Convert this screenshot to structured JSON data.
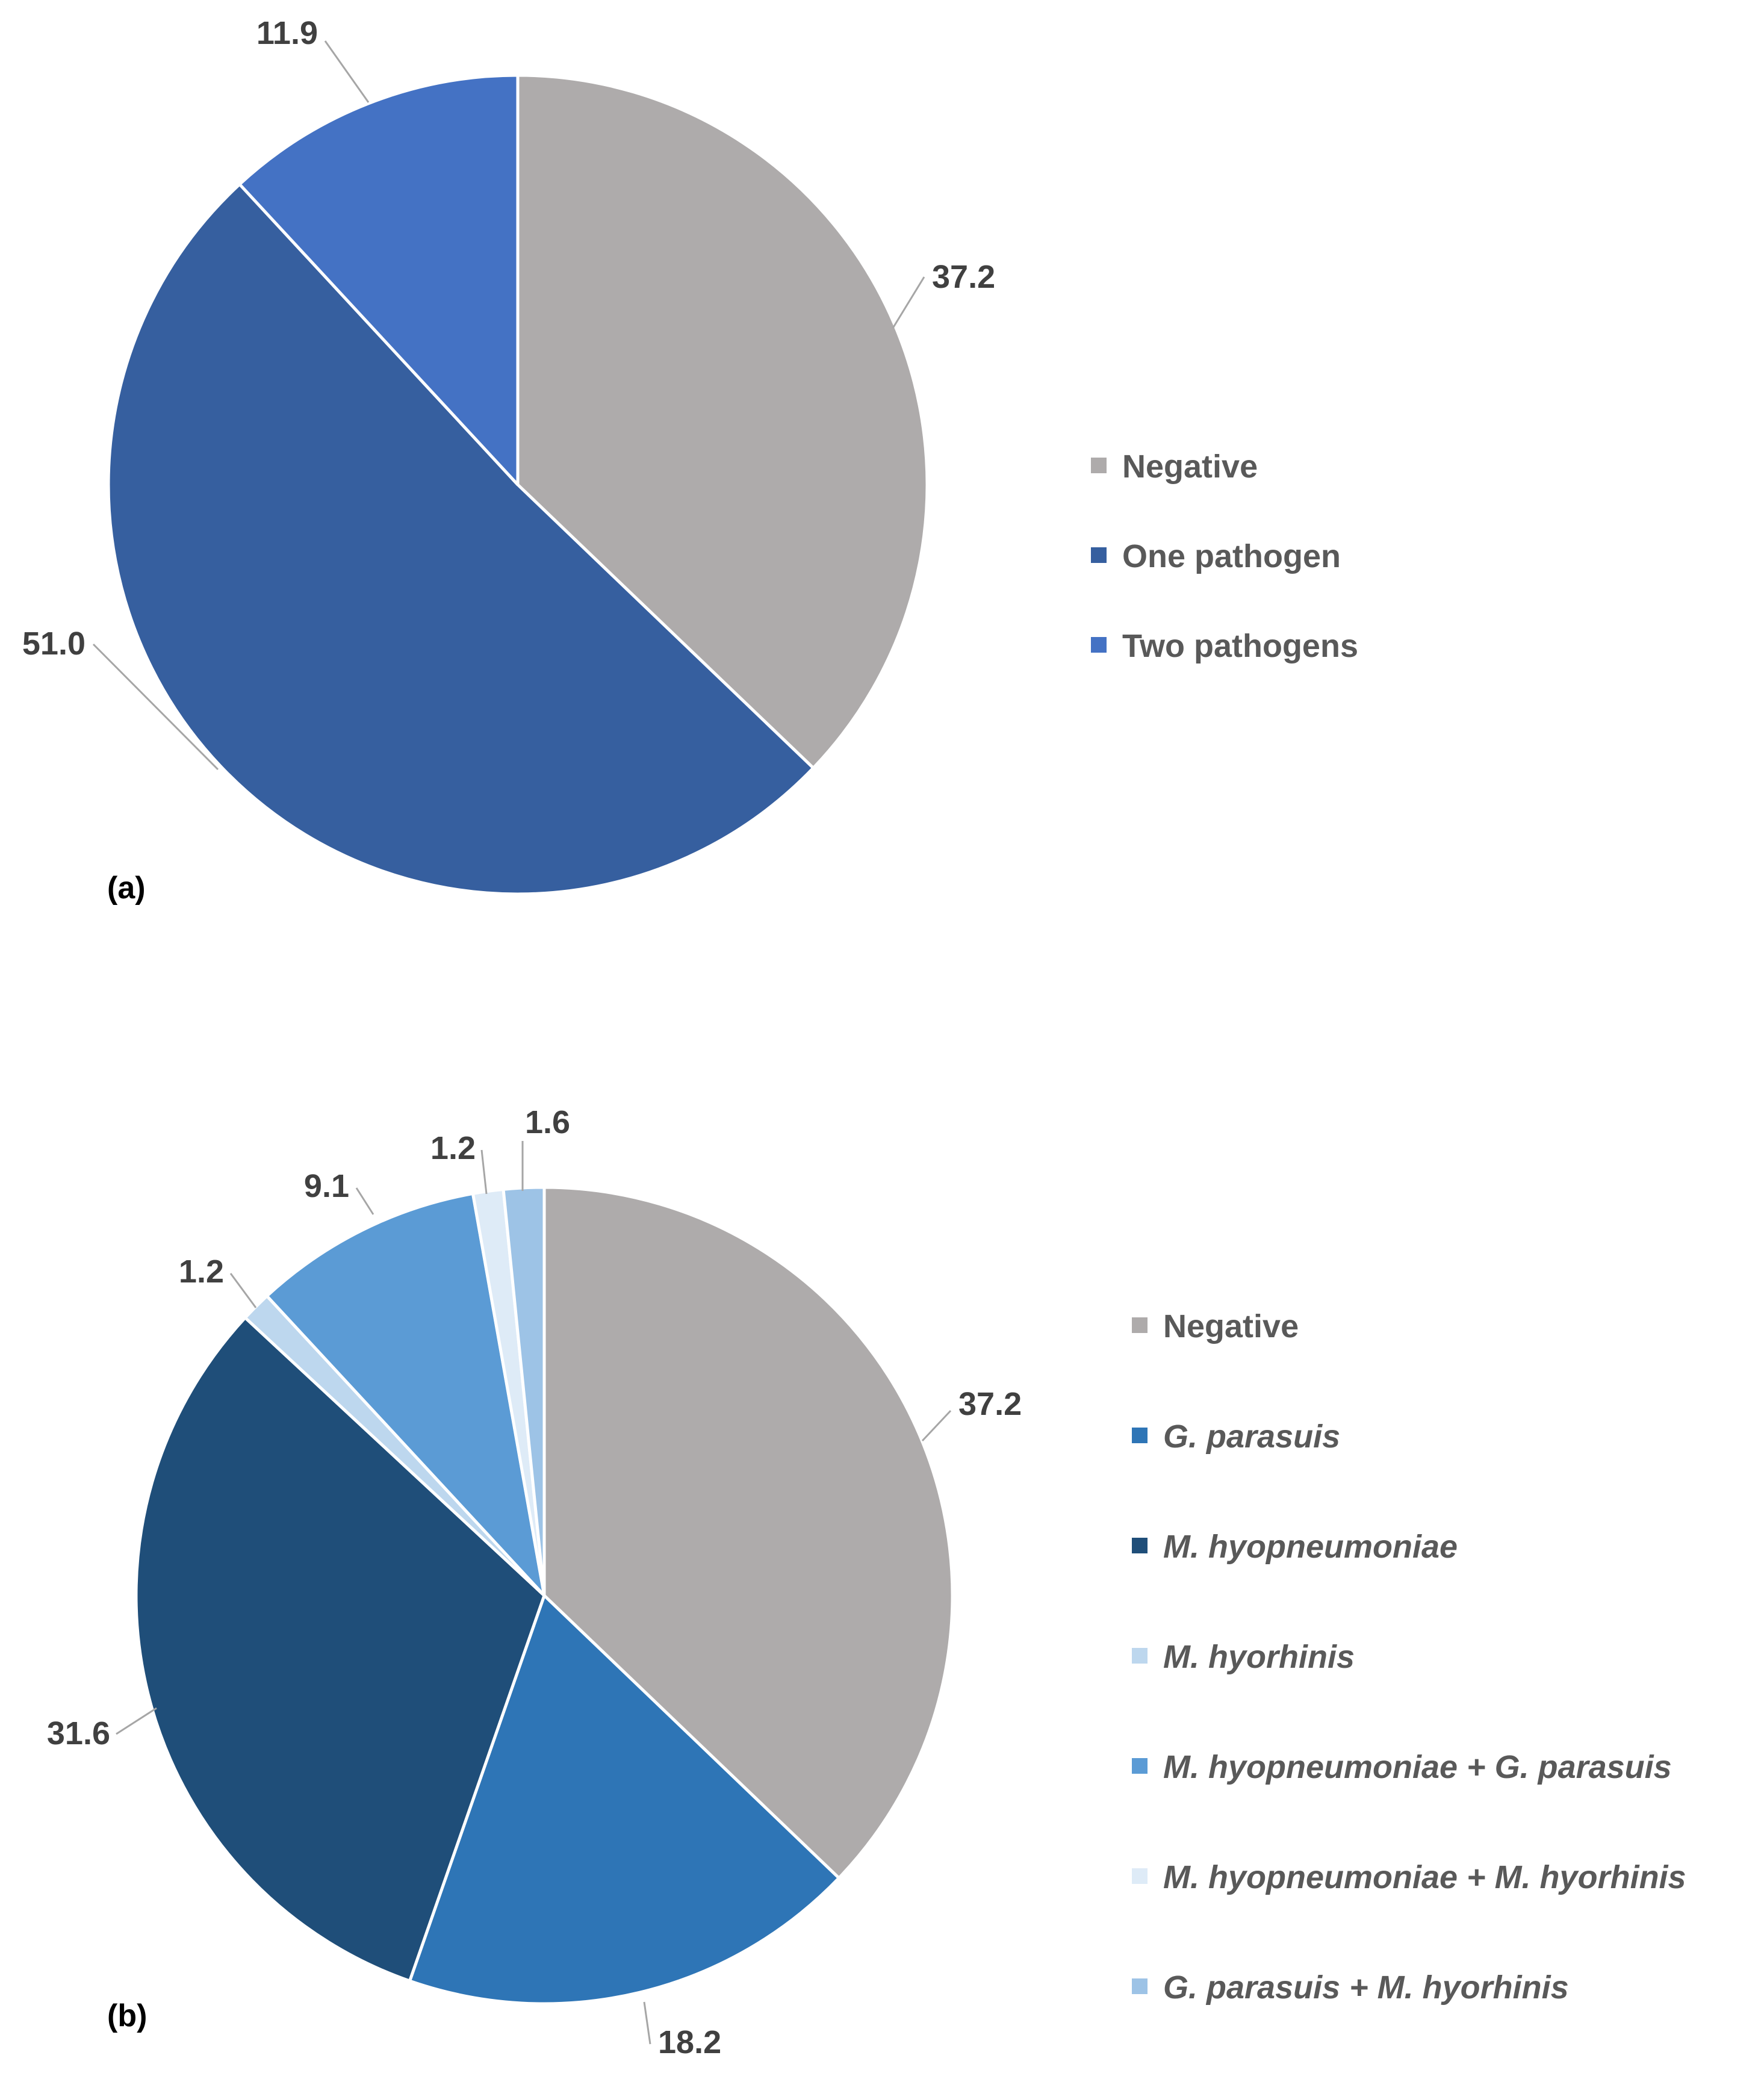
{
  "chart_data": [
    {
      "type": "pie",
      "panel_label": "(a)",
      "categories": [
        "Negative",
        "One pathogen",
        "Two pathogens"
      ],
      "values": [
        37.2,
        51.0,
        11.9
      ],
      "data_labels": [
        "37.2",
        "51.0",
        "11.9"
      ],
      "colors": [
        "#AEABAB",
        "#365F9F",
        "#4472C4"
      ],
      "legend": {
        "entries": [
          "Negative",
          "One pathogen",
          "Two pathogens"
        ],
        "italic": [
          false,
          false,
          false
        ],
        "placement": "right"
      },
      "start_angle_deg": 0,
      "direction": "clockwise"
    },
    {
      "type": "pie",
      "panel_label": "(b)",
      "categories": [
        "Negative",
        "G. parasuis",
        "M. hyopneumoniae",
        "M. hyorhinis",
        "M. hyopneumoniae + G. parasuis",
        "M. hyopneumoniae + M. hyorhinis",
        "G. parasuis + M. hyorhinis"
      ],
      "values": [
        37.2,
        18.2,
        31.6,
        1.2,
        9.1,
        1.2,
        1.6
      ],
      "data_labels": [
        "37.2",
        "18.2",
        "31.6",
        "1.2",
        "9.1",
        "1.2",
        "1.6"
      ],
      "colors": [
        "#AEABAB",
        "#2E75B6",
        "#1F4E79",
        "#BDD7EE",
        "#5B9BD5",
        "#DEEBF7",
        "#9DC3E6"
      ],
      "legend": {
        "entries": [
          "Negative",
          "G. parasuis",
          "M. hyopneumoniae",
          "M. hyorhinis",
          "M. hyopneumoniae + G. parasuis",
          "M. hyopneumoniae + M. hyorhinis",
          "G. parasuis + M. hyorhinis"
        ],
        "italic": [
          false,
          true,
          true,
          true,
          true,
          true,
          true
        ],
        "placement": "right"
      },
      "start_angle_deg": 0,
      "direction": "clockwise"
    }
  ]
}
